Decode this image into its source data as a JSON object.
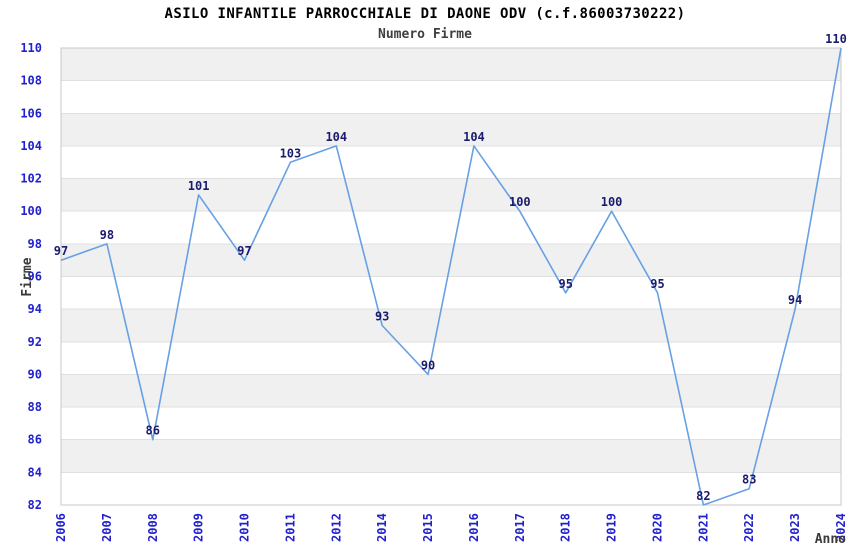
{
  "header": {
    "title": "ASILO INFANTILE PARROCCHIALE DI DAONE ODV (c.f.86003730222)",
    "subtitle": "Numero Firme"
  },
  "chart_data": {
    "type": "line",
    "title": "ASILO INFANTILE PARROCCHIALE DI DAONE ODV (c.f.86003730222)",
    "subtitle": "Numero Firme",
    "categories": [
      "2006",
      "2007",
      "2008",
      "2009",
      "2010",
      "2011",
      "2012",
      "2014",
      "2015",
      "2016",
      "2017",
      "2018",
      "2019",
      "2020",
      "2021",
      "2022",
      "2023",
      "2024"
    ],
    "values": [
      97,
      98,
      86,
      101,
      97,
      103,
      104,
      93,
      90,
      104,
      100,
      95,
      100,
      95,
      82,
      83,
      94,
      110
    ],
    "xlabel": "Anno",
    "ylabel": "Firme",
    "ylim": [
      82,
      110
    ],
    "ytick_step": 2,
    "yticks": [
      82,
      84,
      86,
      88,
      90,
      92,
      94,
      96,
      98,
      100,
      102,
      104,
      106,
      108,
      110
    ],
    "grid": "alternating-horizontal-bands",
    "legend": "none",
    "data_labels_visible": true,
    "colors": {
      "line": "#68a0e4",
      "tick_label": "#2222cc",
      "data_label": "#1b1b6e",
      "band_fill": "#f0f0f0",
      "grid_line": "#e0e0e0",
      "plot_border": "#c8c8c8",
      "axis_title": "#3a3a3a",
      "background": "#ffffff"
    }
  }
}
